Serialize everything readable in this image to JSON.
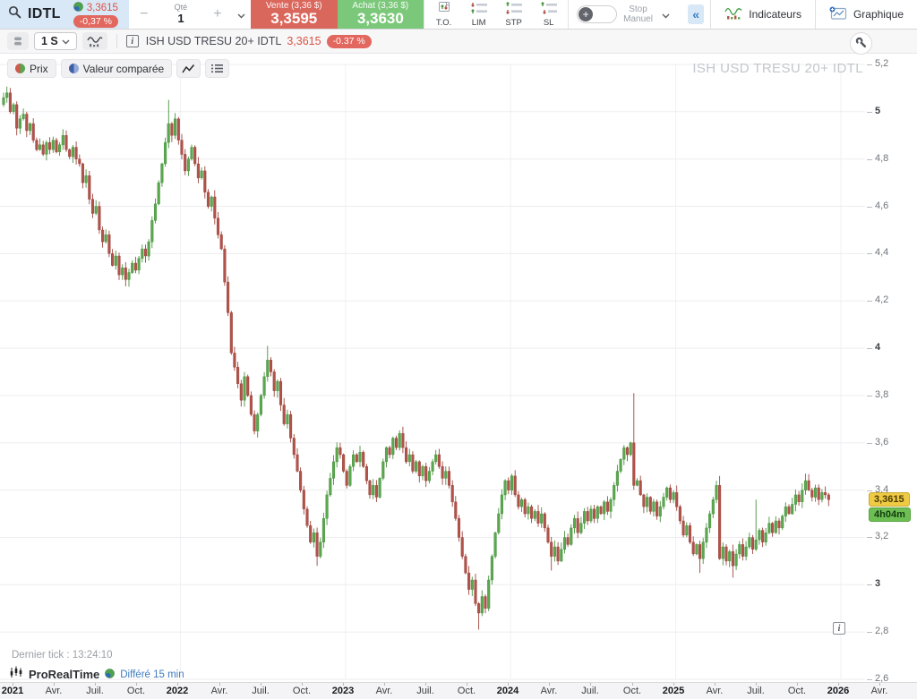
{
  "top_toolbar": {
    "symbol": "IDTL",
    "price": "3,3615",
    "change_badge": "-0,37 %",
    "qty_label": "Qté",
    "qty_value": "1",
    "minus": "−",
    "plus": "+",
    "sell": {
      "label": "Vente (3,36 $)",
      "value": "3,3595"
    },
    "buy": {
      "label": "Achat (3,36 $)",
      "value": "3,3630"
    },
    "order_types": [
      "T.O.",
      "LIM",
      "STP",
      "SL"
    ],
    "stop_toggle": {
      "plus": "+",
      "line1": "Stop",
      "line2": "Manuel"
    },
    "collapse": "«",
    "indicators_label": "Indicateurs",
    "chart_label": "Graphique"
  },
  "chart_toolbar": {
    "timeframe": "1 S",
    "info_glyph": "i",
    "instrument": "ISH USD TRESU 20+ IDTL",
    "price": "3,3615",
    "change_badge": "-0.37 %"
  },
  "legend": {
    "price_chip": "Prix",
    "compare_chip": "Valeur comparée"
  },
  "watermark": "ISH USD TRESU 20+ IDTL",
  "footer": {
    "last_tick": "Dernier tick : 13:24:10",
    "brand": "ProRealTime",
    "delay": "Différé 15 min",
    "info_glyph": "i"
  },
  "chart_data": {
    "type": "candlestick",
    "title": "ISH USD TRESU 20+ IDTL",
    "timeframe": "weekly",
    "ylim": [
      2.6,
      5.2
    ],
    "grid": true,
    "y_ticks": [
      {
        "label": "5,2",
        "value": 5.2
      },
      {
        "label": "5",
        "value": 5.0,
        "bold": true
      },
      {
        "label": "4,8",
        "value": 4.8
      },
      {
        "label": "4,6",
        "value": 4.6
      },
      {
        "label": "4,4",
        "value": 4.4
      },
      {
        "label": "4,2",
        "value": 4.2
      },
      {
        "label": "4",
        "value": 4.0,
        "bold": true
      },
      {
        "label": "3,8",
        "value": 3.8
      },
      {
        "label": "3,6",
        "value": 3.6
      },
      {
        "label": "3,4",
        "value": 3.4
      },
      {
        "label": "3,2",
        "value": 3.2
      },
      {
        "label": "3",
        "value": 3.0,
        "bold": true
      },
      {
        "label": "2,8",
        "value": 2.8
      },
      {
        "label": "2,6",
        "value": 2.6
      }
    ],
    "x_ticks": [
      {
        "label": "2021",
        "bold": true
      },
      {
        "label": "Avr."
      },
      {
        "label": "Juil."
      },
      {
        "label": "Oct."
      },
      {
        "label": "2022",
        "bold": true
      },
      {
        "label": "Avr."
      },
      {
        "label": "Juil."
      },
      {
        "label": "Oct."
      },
      {
        "label": "2023",
        "bold": true
      },
      {
        "label": "Avr."
      },
      {
        "label": "Juil."
      },
      {
        "label": "Oct."
      },
      {
        "label": "2024",
        "bold": true
      },
      {
        "label": "Avr."
      },
      {
        "label": "Juil."
      },
      {
        "label": "Oct."
      },
      {
        "label": "2025",
        "bold": true
      },
      {
        "label": "Avr."
      },
      {
        "label": "Juil."
      },
      {
        "label": "Oct."
      },
      {
        "label": "2026",
        "bold": true
      },
      {
        "label": "Avr."
      }
    ],
    "first_open": 5.03,
    "closes": [
      5.06,
      5.08,
      5.0,
      5.03,
      4.93,
      4.97,
      4.99,
      4.92,
      4.95,
      4.88,
      4.84,
      4.86,
      4.82,
      4.87,
      4.84,
      4.88,
      4.83,
      4.86,
      4.9,
      4.84,
      4.81,
      4.85,
      4.8,
      4.78,
      4.7,
      4.73,
      4.63,
      4.57,
      4.6,
      4.5,
      4.45,
      4.48,
      4.4,
      4.35,
      4.39,
      4.31,
      4.34,
      4.29,
      4.32,
      4.36,
      4.33,
      4.38,
      4.42,
      4.39,
      4.45,
      4.54,
      4.61,
      4.7,
      4.78,
      4.87,
      4.95,
      4.9,
      4.97,
      4.88,
      4.82,
      4.75,
      4.8,
      4.85,
      4.78,
      4.72,
      4.75,
      4.66,
      4.6,
      4.64,
      4.55,
      4.48,
      4.42,
      4.28,
      4.15,
      3.98,
      3.92,
      3.85,
      3.78,
      3.88,
      3.8,
      3.72,
      3.65,
      3.72,
      3.8,
      3.88,
      3.95,
      3.9,
      3.82,
      3.86,
      3.76,
      3.68,
      3.72,
      3.62,
      3.55,
      3.48,
      3.4,
      3.32,
      3.25,
      3.18,
      3.22,
      3.12,
      3.18,
      3.28,
      3.38,
      3.45,
      3.52,
      3.58,
      3.55,
      3.48,
      3.42,
      3.5,
      3.55,
      3.52,
      3.56,
      3.5,
      3.44,
      3.38,
      3.42,
      3.37,
      3.45,
      3.52,
      3.58,
      3.55,
      3.62,
      3.58,
      3.64,
      3.58,
      3.52,
      3.55,
      3.48,
      3.52,
      3.46,
      3.5,
      3.44,
      3.48,
      3.52,
      3.55,
      3.5,
      3.45,
      3.48,
      3.42,
      3.35,
      3.28,
      3.2,
      3.12,
      3.05,
      2.98,
      3.02,
      2.92,
      2.88,
      2.95,
      2.9,
      3.02,
      3.12,
      3.22,
      3.3,
      3.38,
      3.44,
      3.4,
      3.46,
      3.38,
      3.33,
      3.36,
      3.3,
      3.33,
      3.28,
      3.31,
      3.26,
      3.3,
      3.24,
      3.18,
      3.12,
      3.16,
      3.1,
      3.15,
      3.2,
      3.17,
      3.24,
      3.28,
      3.22,
      3.26,
      3.31,
      3.27,
      3.32,
      3.28,
      3.33,
      3.3,
      3.35,
      3.31,
      3.36,
      3.42,
      3.48,
      3.53,
      3.58,
      3.55,
      3.6,
      3.42,
      3.44,
      3.38,
      3.33,
      3.37,
      3.31,
      3.35,
      3.29,
      3.33,
      3.37,
      3.41,
      3.36,
      3.39,
      3.33,
      3.27,
      3.21,
      3.25,
      3.18,
      3.13,
      3.17,
      3.11,
      3.18,
      3.24,
      3.3,
      3.36,
      3.42,
      3.11,
      3.16,
      3.1,
      3.14,
      3.08,
      3.13,
      3.17,
      3.12,
      3.16,
      3.2,
      3.15,
      3.19,
      3.23,
      3.18,
      3.22,
      3.26,
      3.22,
      3.27,
      3.24,
      3.29,
      3.33,
      3.3,
      3.34,
      3.38,
      3.35,
      3.4,
      3.44,
      3.4,
      3.37,
      3.41,
      3.36,
      3.39,
      3.38,
      3.36
    ],
    "wick_overrides": {
      "38": {
        "low": 4.26
      },
      "50": {
        "high": 5.05
      },
      "80": {
        "high": 4.01
      },
      "95": {
        "low": 3.08
      },
      "144": {
        "low": 2.81
      },
      "166": {
        "low": 3.06
      },
      "191": {
        "high": 3.81
      },
      "211": {
        "low": 3.05
      },
      "217": {
        "high": 3.46
      },
      "221": {
        "low": 3.03
      },
      "228": {
        "high": 3.36
      },
      "243": {
        "high": 3.47
      }
    },
    "last_price": 3.3615,
    "last_price_label": "3,3615",
    "countdown_label": "4h04m",
    "colors": {
      "up": "#5aa84f",
      "up_stroke": "#4a9341",
      "down": "#b1534a",
      "down_stroke": "#9e463e",
      "grid": "#ededf1",
      "year_line": "#f1f1f4"
    }
  }
}
